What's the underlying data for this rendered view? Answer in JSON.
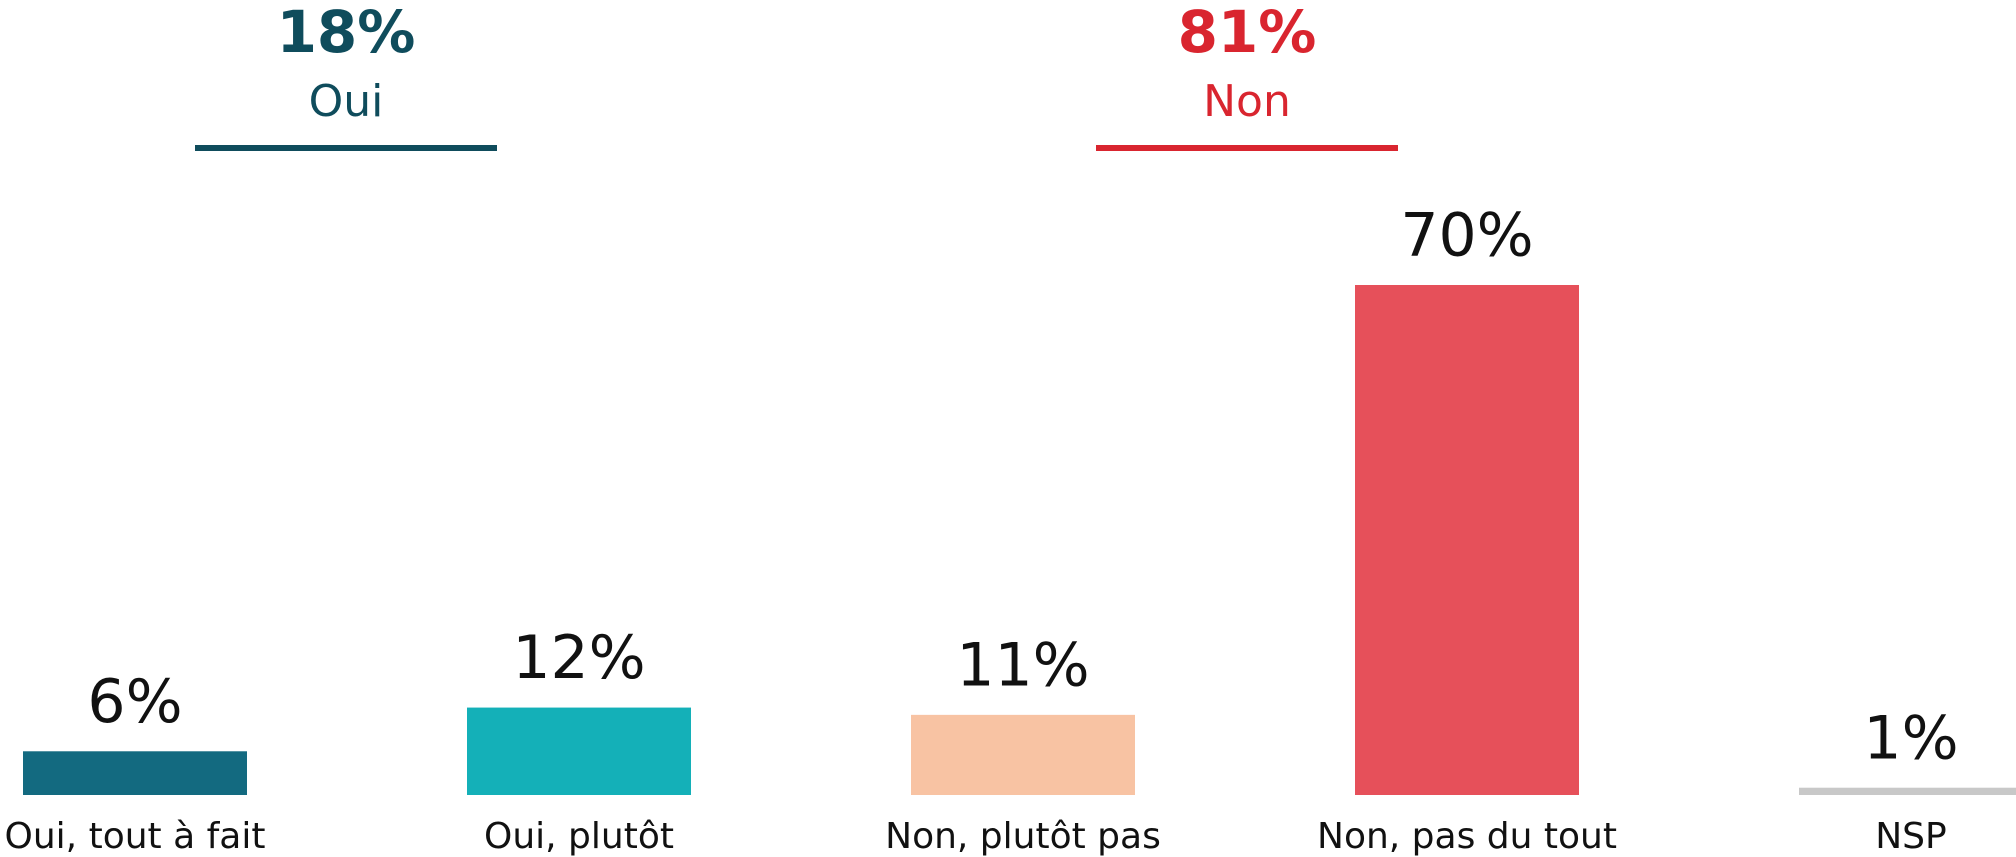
{
  "chart_data": {
    "type": "bar",
    "categories": [
      "Oui, tout à fait",
      "Oui, plutôt",
      "Non, plutôt pas",
      "Non, pas du tout",
      "NSP"
    ],
    "values": [
      6,
      12,
      11,
      70,
      1
    ],
    "value_labels": [
      "6%",
      "12%",
      "11%",
      "70%",
      "1%"
    ],
    "colors": [
      "#136a80",
      "#14b0b8",
      "#f8c3a3",
      "#e6505a",
      "#c8c8c8"
    ],
    "ylim": [
      0,
      70
    ],
    "groups": [
      {
        "total": "18%",
        "label": "Oui",
        "color": "#0f4c5c"
      },
      {
        "total": "81%",
        "label": "Non",
        "color": "#d9252f"
      }
    ]
  }
}
